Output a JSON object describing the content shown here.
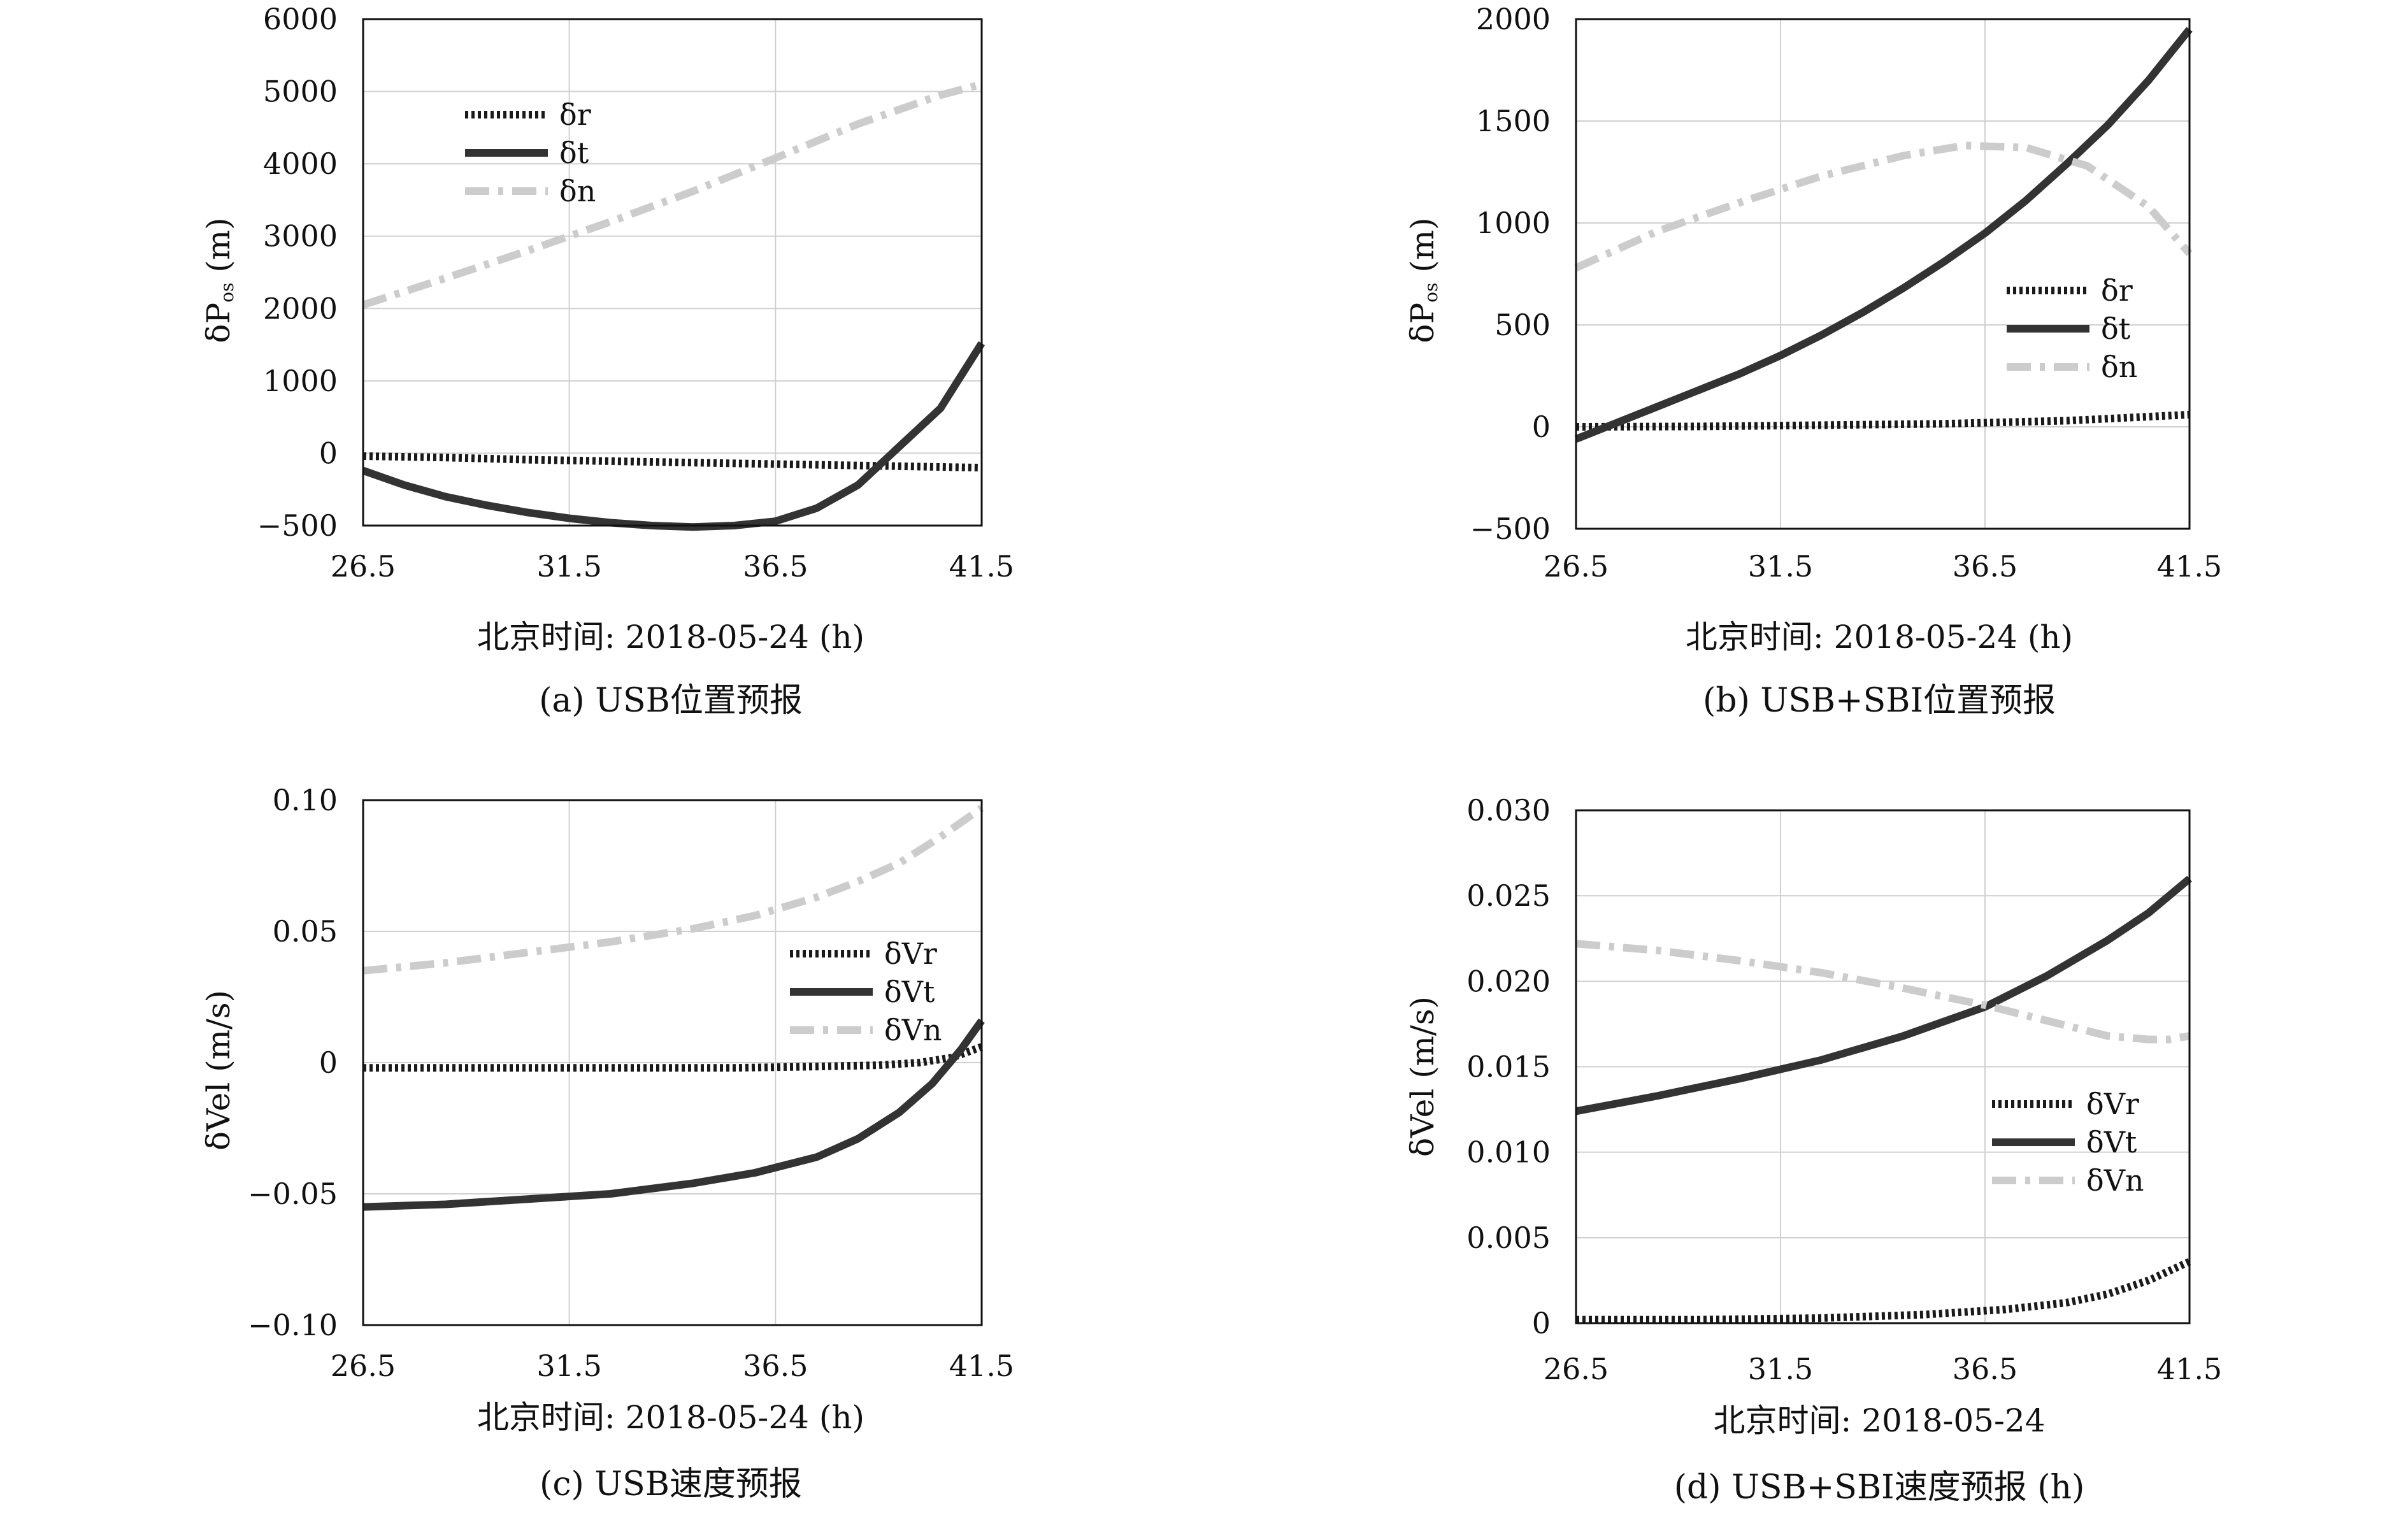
{
  "colors": {
    "r": "#1a1a1a",
    "t": "#333333",
    "n": "#cccccc",
    "grid": "#d0d0d0",
    "frame": "#111111"
  },
  "chart_data": [
    {
      "id": "a",
      "type": "line",
      "caption": "(a) USB位置预报",
      "xlabel": "北京时间: 2018-05-24 (h)",
      "ylabel": "δP_os (m)",
      "xlim": [
        26.5,
        41.5
      ],
      "xticks": [
        "26.5",
        "31.5",
        "36.5",
        "41.5"
      ],
      "xtick_values": [
        26.5,
        31.5,
        36.5,
        41.5
      ],
      "yticks": [
        "6000",
        "5000",
        "4000",
        "3000",
        "2000",
        "1000",
        "0",
        "−500"
      ],
      "legend_position": "top-left",
      "grid": true,
      "series": [
        {
          "name": "δr",
          "style": "dotted",
          "x": [
            26.5,
            28.5,
            30.5,
            32.5,
            34.5,
            36.5,
            38.5,
            40.5,
            41.5
          ],
          "y": [
            -20,
            -30,
            -45,
            -55,
            -65,
            -75,
            -85,
            -95,
            -100
          ]
        },
        {
          "name": "δt",
          "style": "solid",
          "x": [
            26.5,
            27.5,
            28.5,
            29.5,
            30.5,
            31.5,
            32.5,
            33.5,
            34.5,
            35.5,
            36.5,
            37.5,
            38.5,
            39.5,
            40.5,
            41.5
          ],
          "y": [
            -120,
            -220,
            -300,
            -360,
            -410,
            -450,
            -480,
            -500,
            -510,
            -500,
            -470,
            -380,
            -220,
            90,
            620,
            1520
          ]
        },
        {
          "name": "δn",
          "style": "dashdot",
          "x": [
            26.5,
            28.5,
            30.5,
            32.5,
            34.5,
            36.5,
            38.5,
            40.5,
            41.5
          ],
          "y": [
            2050,
            2420,
            2800,
            3200,
            3620,
            4080,
            4550,
            4950,
            5100
          ]
        }
      ]
    },
    {
      "id": "b",
      "type": "line",
      "caption": "(b) USB+SBI位置预报",
      "xlabel": "北京时间: 2018-05-24 (h)",
      "ylabel": "δP_os (m)",
      "xlim": [
        26.5,
        41.5
      ],
      "ylim": [
        -500,
        2000
      ],
      "xticks": [
        "26.5",
        "31.5",
        "36.5",
        "41.5"
      ],
      "xtick_values": [
        26.5,
        31.5,
        36.5,
        41.5
      ],
      "yticks": [
        "2000",
        "1500",
        "1000",
        "500",
        "0",
        "−500"
      ],
      "ytick_values": [
        2000,
        1500,
        1000,
        500,
        0,
        -500
      ],
      "legend_position": "center-right",
      "grid": true,
      "series": [
        {
          "name": "δr",
          "style": "dotted",
          "x": [
            26.5,
            29.5,
            32.5,
            35.5,
            38.5,
            41.5
          ],
          "y": [
            0,
            2,
            8,
            15,
            30,
            60
          ]
        },
        {
          "name": "δt",
          "style": "solid",
          "x": [
            26.5,
            27.5,
            28.5,
            29.5,
            30.5,
            31.5,
            32.5,
            33.5,
            34.5,
            35.5,
            36.5,
            37.5,
            38.5,
            39.5,
            40.5,
            41.5
          ],
          "y": [
            -60,
            20,
            100,
            180,
            260,
            350,
            450,
            560,
            680,
            810,
            950,
            1110,
            1290,
            1480,
            1700,
            1950
          ]
        },
        {
          "name": "δn",
          "style": "dashdot",
          "x": [
            26.5,
            28.5,
            30.5,
            32.5,
            34.5,
            36.0,
            37.5,
            39.0,
            40.5,
            41.5
          ],
          "y": [
            780,
            960,
            1100,
            1230,
            1330,
            1380,
            1370,
            1280,
            1080,
            850
          ]
        }
      ]
    },
    {
      "id": "c",
      "type": "line",
      "caption": "(c) USB速度预报",
      "xlabel": "北京时间: 2018-05-24 (h)",
      "ylabel": "δVel (m/s)",
      "xlim": [
        26.5,
        41.5
      ],
      "ylim": [
        -0.1,
        0.1
      ],
      "xticks": [
        "26.5",
        "31.5",
        "36.5",
        "41.5"
      ],
      "xtick_values": [
        26.5,
        31.5,
        36.5,
        41.5
      ],
      "yticks": [
        "0.10",
        "0.05",
        "0",
        "−0.05",
        "−0.10"
      ],
      "ytick_values": [
        0.1,
        0.05,
        0,
        -0.05,
        -0.1
      ],
      "legend_position": "center-right",
      "grid": true,
      "series": [
        {
          "name": "δVr",
          "style": "dotted",
          "x": [
            26.5,
            29.5,
            32.5,
            35.5,
            37.5,
            39.0,
            40.0,
            40.8,
            41.5
          ],
          "y": [
            -0.002,
            -0.002,
            -0.002,
            -0.002,
            -0.0015,
            -0.001,
            0.0,
            0.002,
            0.006
          ]
        },
        {
          "name": "δVt",
          "style": "solid",
          "x": [
            26.5,
            28.5,
            30.5,
            32.5,
            34.5,
            36.0,
            37.5,
            38.5,
            39.5,
            40.3,
            41.0,
            41.5
          ],
          "y": [
            -0.055,
            -0.054,
            -0.052,
            -0.05,
            -0.046,
            -0.042,
            -0.036,
            -0.029,
            -0.019,
            -0.008,
            0.005,
            0.016
          ]
        },
        {
          "name": "δVn",
          "style": "dashdot",
          "x": [
            26.5,
            28.5,
            30.5,
            32.5,
            34.5,
            36.0,
            37.5,
            38.5,
            39.5,
            40.5,
            41.5
          ],
          "y": [
            0.035,
            0.038,
            0.042,
            0.046,
            0.051,
            0.056,
            0.063,
            0.069,
            0.076,
            0.086,
            0.097
          ]
        }
      ]
    },
    {
      "id": "d",
      "type": "line",
      "caption": "(d) USB+SBI速度预报 (h)",
      "xlabel": "北京时间: 2018-05-24",
      "ylabel": "δVel (m/s)",
      "xlim": [
        26.5,
        41.5
      ],
      "ylim": [
        0,
        0.03
      ],
      "xticks": [
        "26.5",
        "31.5",
        "36.5",
        "41.5"
      ],
      "xtick_values": [
        26.5,
        31.5,
        36.5,
        41.5
      ],
      "yticks": [
        "0.030",
        "0.025",
        "0.020",
        "0.015",
        "0.010",
        "0.005",
        "0"
      ],
      "ytick_values": [
        0.03,
        0.025,
        0.02,
        0.015,
        0.01,
        0.005,
        0
      ],
      "legend_position": "center-right",
      "grid": true,
      "series": [
        {
          "name": "δVr",
          "style": "dotted",
          "x": [
            26.5,
            29.5,
            32.5,
            35.0,
            37.0,
            38.5,
            39.5,
            40.5,
            41.5
          ],
          "y": [
            0.0002,
            0.0002,
            0.0003,
            0.0005,
            0.0008,
            0.0012,
            0.0017,
            0.0025,
            0.0036
          ]
        },
        {
          "name": "δVt",
          "style": "solid",
          "x": [
            26.5,
            28.5,
            30.5,
            32.5,
            34.5,
            36.5,
            38.0,
            39.5,
            40.5,
            41.5
          ],
          "y": [
            0.0124,
            0.0133,
            0.0143,
            0.0154,
            0.0168,
            0.0185,
            0.0203,
            0.0224,
            0.024,
            0.026
          ]
        },
        {
          "name": "δVn",
          "style": "dashdot",
          "x": [
            26.5,
            28.5,
            30.5,
            32.5,
            34.5,
            36.5,
            38.0,
            39.5,
            40.5,
            41.0,
            41.5
          ],
          "y": [
            0.0222,
            0.0218,
            0.0212,
            0.0205,
            0.0196,
            0.0186,
            0.0177,
            0.0168,
            0.0166,
            0.0166,
            0.0168
          ]
        }
      ]
    }
  ]
}
